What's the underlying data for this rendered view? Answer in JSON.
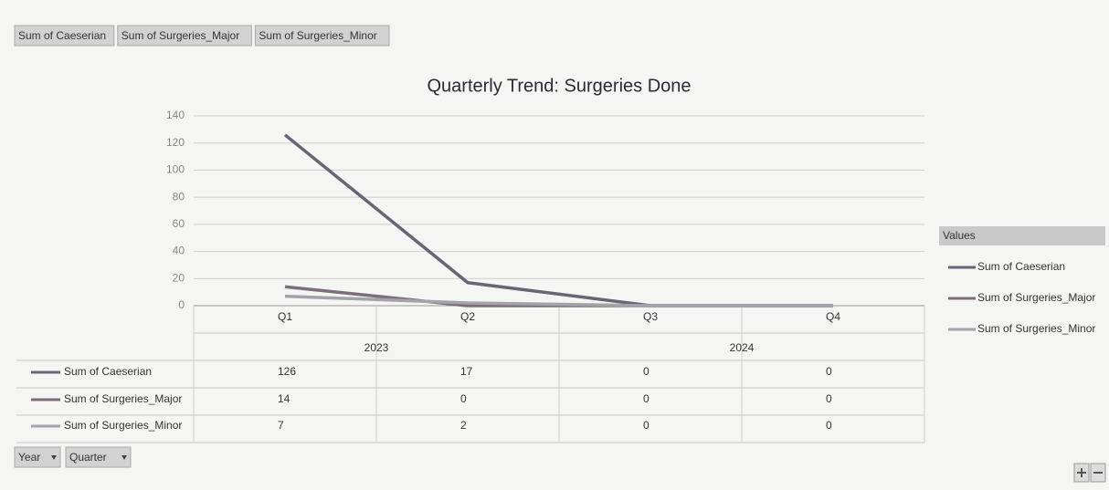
{
  "chart_data": {
    "type": "line",
    "title": "Quarterly Trend: Surgeries Done",
    "categories": [
      "Q1",
      "Q2",
      "Q3",
      "Q4"
    ],
    "year_groups": [
      {
        "name": "2023",
        "count": 2
      },
      {
        "name": "2024",
        "count": 2
      }
    ],
    "series": [
      {
        "name": "Sum of Caeserian",
        "color": "#666674",
        "values": [
          126,
          17,
          0,
          0
        ]
      },
      {
        "name": "Sum of Surgeries_Major",
        "color": "#7d6f7a",
        "values": [
          14,
          0,
          0,
          0
        ]
      },
      {
        "name": "Sum of Surgeries_Minor",
        "color": "#a3a3ab",
        "values": [
          7,
          2,
          0,
          0
        ]
      }
    ],
    "ylim": [
      0,
      140
    ],
    "yticks": [
      0,
      20,
      40,
      60,
      80,
      100,
      120,
      140
    ],
    "grid": true,
    "legend_title": "Values",
    "legend": "right",
    "filter_buttons": [
      "Year",
      "Quarter"
    ]
  }
}
